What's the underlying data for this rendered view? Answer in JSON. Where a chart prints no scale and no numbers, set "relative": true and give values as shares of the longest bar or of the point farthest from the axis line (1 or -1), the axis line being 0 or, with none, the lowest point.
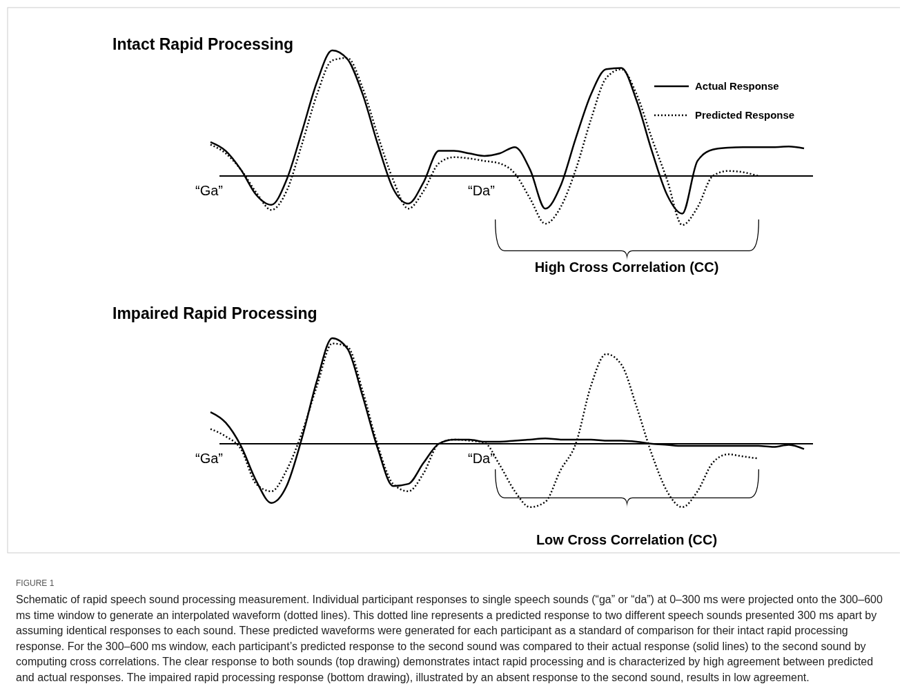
{
  "chart_data": [
    {
      "type": "line",
      "title": "Intact Rapid Processing",
      "relative": true,
      "legend": "top right",
      "categories": [
        null,
        null,
        null,
        null,
        null,
        null,
        null,
        null,
        null,
        null,
        null,
        null,
        null,
        null,
        null,
        null,
        null,
        null,
        null,
        null,
        null,
        null,
        null,
        null,
        null,
        null,
        null,
        null,
        null,
        null,
        null,
        null,
        null,
        null,
        null,
        null,
        null,
        null,
        null,
        null
      ],
      "series": [
        {
          "name": "Actual Response",
          "color": "#000000",
          "line_style": "solid",
          "values": [
            0.27,
            0.2,
            0.05,
            -0.15,
            -0.23,
            -0.03,
            0.35,
            0.75,
            1.0,
            0.93,
            0.65,
            0.25,
            -0.1,
            -0.22,
            -0.05,
            0.2,
            0.2,
            0.18,
            0.16,
            0.18,
            0.23,
            0.05,
            -0.26,
            -0.08,
            0.3,
            0.65,
            0.85,
            0.86,
            0.6,
            0.2,
            -0.15,
            -0.3,
            0.12,
            0.21,
            0.225,
            0.23,
            0.23,
            0.23,
            0.235,
            0.22
          ]
        },
        {
          "name": "Predicted Response",
          "color": "#000000",
          "line_style": "dotted",
          "values": [
            0.25,
            0.18,
            0.05,
            -0.13,
            -0.27,
            -0.12,
            0.25,
            0.65,
            0.92,
            0.94,
            0.7,
            0.32,
            -0.03,
            -0.26,
            -0.12,
            0.1,
            0.15,
            0.14,
            0.12,
            0.1,
            0.02,
            -0.18,
            -0.38,
            -0.25,
            0.05,
            0.45,
            0.78,
            0.85,
            0.65,
            0.3,
            -0.03,
            -0.39,
            -0.25,
            0.0,
            0.04,
            0.03,
            0.0,
            null,
            null,
            null
          ]
        }
      ],
      "annotations": [
        "“Ga”",
        "“Da”",
        "High Cross Correlation (CC)"
      ]
    },
    {
      "type": "line",
      "title": "Impaired Rapid Processing",
      "relative": true,
      "categories": [
        null,
        null,
        null,
        null,
        null,
        null,
        null,
        null,
        null,
        null,
        null,
        null,
        null,
        null,
        null,
        null,
        null,
        null,
        null,
        null,
        null,
        null,
        null,
        null,
        null,
        null,
        null,
        null,
        null,
        null,
        null,
        null,
        null,
        null,
        null,
        null,
        null,
        null,
        null,
        null
      ],
      "series": [
        {
          "color": "#000000",
          "line_style": "solid",
          "values": [
            0.3,
            0.2,
            -0.02,
            -0.35,
            -0.56,
            -0.4,
            0.05,
            0.6,
            1.0,
            0.9,
            0.45,
            -0.05,
            -0.4,
            -0.38,
            -0.18,
            0.0,
            0.04,
            0.04,
            0.02,
            0.02,
            0.03,
            0.04,
            0.05,
            0.04,
            0.04,
            0.04,
            0.03,
            0.03,
            0.02,
            0.0,
            -0.01,
            -0.02,
            -0.02,
            -0.02,
            -0.02,
            -0.02,
            -0.02,
            -0.03,
            -0.01,
            -0.05
          ]
        },
        {
          "color": "#000000",
          "line_style": "dotted",
          "values": [
            0.14,
            0.07,
            -0.05,
            -0.38,
            -0.45,
            -0.25,
            0.1,
            0.55,
            0.95,
            0.92,
            0.5,
            -0.02,
            -0.38,
            -0.45,
            -0.28,
            0.0,
            0.04,
            0.03,
            0.01,
            -0.2,
            -0.45,
            -0.6,
            -0.55,
            -0.25,
            0.0,
            0.55,
            0.85,
            0.75,
            0.35,
            -0.1,
            -0.45,
            -0.6,
            -0.45,
            -0.18,
            -0.1,
            -0.12,
            -0.14,
            null,
            null,
            null
          ]
        }
      ],
      "annotations": [
        "“Ga”",
        "“Da”",
        "Low Cross Correlation (CC)",
        "FIGURE 1",
        "Schematic of rapid speech sound processing measurement. Individual participant responses to single speech sounds (“ga” or “da”) at 0–300 ms were projected onto the 300–600 ms time window to generate an interpolated waveform (dotted lines). This dotted line represents a predicted response to two different speech sounds presented 300 ms apart by assuming identical responses to each sound. These predicted waveforms were generated for each participant as a standard of comparison for their intact rapid processing response. For the 300–600 ms window, each participant’s predicted response to the second sound was compared to their actual response (solid lines) to the second sound by computing cross correlations. The clear response to both sounds (top drawing) demonstrates intact rapid processing and is characterized by high agreement between predicted and actual responses. The impaired rapid processing response (bottom drawing), illustrated by an absent response to the second sound, results in low agreement."
      ]
    }
  ]
}
